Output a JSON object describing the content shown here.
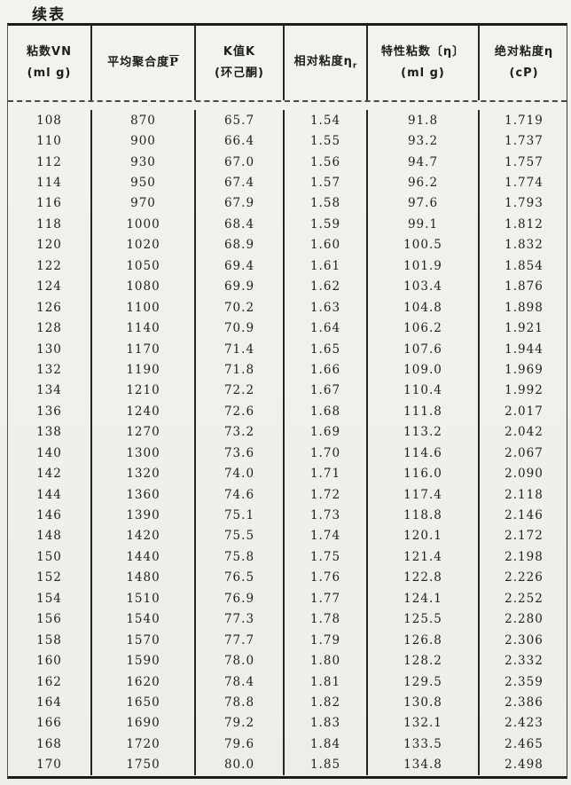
{
  "page": {
    "continued_label": "续表"
  },
  "colors": {
    "paper": "#f1f0ec",
    "ink": "#1c1c1a",
    "rule": "#26251f"
  },
  "table": {
    "columns": [
      {
        "line1": "粘数VN",
        "line2": "(ml g)"
      },
      {
        "line1": "平均聚合度",
        "symbol": "P"
      },
      {
        "line1": "K值K",
        "line2": "(环己酮)"
      },
      {
        "line1": "相对粘度η",
        "sub": "r"
      },
      {
        "line1": "特性粘数〔η〕",
        "line2": "(ml g)"
      },
      {
        "line1": "绝对粘度η",
        "line2": "(cP)"
      }
    ],
    "rows": [
      [
        "108",
        "870",
        "65.7",
        "1.54",
        "91.8",
        "1.719"
      ],
      [
        "110",
        "900",
        "66.4",
        "1.55",
        "93.2",
        "1.737"
      ],
      [
        "112",
        "930",
        "67.0",
        "1.56",
        "94.7",
        "1.757"
      ],
      [
        "114",
        "950",
        "67.4",
        "1.57",
        "96.2",
        "1.774"
      ],
      [
        "116",
        "970",
        "67.9",
        "1.58",
        "97.6",
        "1.793"
      ],
      [
        "118",
        "1000",
        "68.4",
        "1.59",
        "99.1",
        "1.812"
      ],
      [
        "120",
        "1020",
        "68.9",
        "1.60",
        "100.5",
        "1.832"
      ],
      [
        "122",
        "1050",
        "69.4",
        "1.61",
        "101.9",
        "1.854"
      ],
      [
        "124",
        "1080",
        "69.9",
        "1.62",
        "103.4",
        "1.876"
      ],
      [
        "126",
        "1100",
        "70.2",
        "1.63",
        "104.8",
        "1.898"
      ],
      [
        "128",
        "1140",
        "70.9",
        "1.64",
        "106.2",
        "1.921"
      ],
      [
        "130",
        "1170",
        "71.4",
        "1.65",
        "107.6",
        "1.944"
      ],
      [
        "132",
        "1190",
        "71.8",
        "1.66",
        "109.0",
        "1.969"
      ],
      [
        "134",
        "1210",
        "72.2",
        "1.67",
        "110.4",
        "1.992"
      ],
      [
        "136",
        "1240",
        "72.6",
        "1.68",
        "111.8",
        "2.017"
      ],
      [
        "138",
        "1270",
        "73.2",
        "1.69",
        "113.2",
        "2.042"
      ],
      [
        "140",
        "1300",
        "73.6",
        "1.70",
        "114.6",
        "2.067"
      ],
      [
        "142",
        "1320",
        "74.0",
        "1.71",
        "116.0",
        "2.090"
      ],
      [
        "144",
        "1360",
        "74.6",
        "1.72",
        "117.4",
        "2.118"
      ],
      [
        "146",
        "1390",
        "75.1",
        "1.73",
        "118.8",
        "2.146"
      ],
      [
        "148",
        "1420",
        "75.5",
        "1.74",
        "120.1",
        "2.172"
      ],
      [
        "150",
        "1440",
        "75.8",
        "1.75",
        "121.4",
        "2.198"
      ],
      [
        "152",
        "1480",
        "76.5",
        "1.76",
        "122.8",
        "2.226"
      ],
      [
        "154",
        "1510",
        "76.9",
        "1.77",
        "124.1",
        "2.252"
      ],
      [
        "156",
        "1540",
        "77.3",
        "1.78",
        "125.5",
        "2.280"
      ],
      [
        "158",
        "1570",
        "77.7",
        "1.79",
        "126.8",
        "2.306"
      ],
      [
        "160",
        "1590",
        "78.0",
        "1.80",
        "128.2",
        "2.332"
      ],
      [
        "162",
        "1620",
        "78.4",
        "1.81",
        "129.5",
        "2.359"
      ],
      [
        "164",
        "1650",
        "78.8",
        "1.82",
        "130.8",
        "2.386"
      ],
      [
        "166",
        "1690",
        "79.2",
        "1.83",
        "132.1",
        "2.423"
      ],
      [
        "168",
        "1720",
        "79.6",
        "1.84",
        "133.5",
        "2.465"
      ],
      [
        "170",
        "1750",
        "80.0",
        "1.85",
        "134.8",
        "2.498"
      ]
    ]
  }
}
